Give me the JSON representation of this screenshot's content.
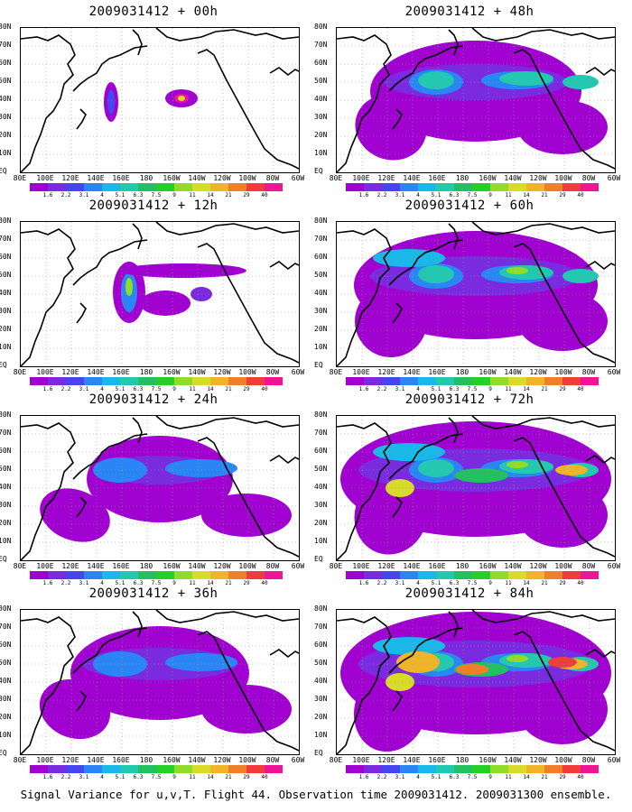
{
  "panels": [
    {
      "title": "2009031412 + 00h",
      "level": 0
    },
    {
      "title": "2009031412 + 48h",
      "level": 4
    },
    {
      "title": "2009031412 + 12h",
      "level": 1
    },
    {
      "title": "2009031412 + 60h",
      "level": 5
    },
    {
      "title": "2009031412 + 24h",
      "level": 2
    },
    {
      "title": "2009031412 + 72h",
      "level": 6
    },
    {
      "title": "2009031412 + 36h",
      "level": 3
    },
    {
      "title": "2009031412 + 84h",
      "level": 7
    }
  ],
  "lat_labels": [
    "80N",
    "70N",
    "60N",
    "50N",
    "40N",
    "30N",
    "20N",
    "10N",
    "EQ"
  ],
  "lon_labels": [
    "80E",
    "100E",
    "120E",
    "140E",
    "160E",
    "180",
    "160W",
    "140W",
    "120W",
    "100W",
    "80W",
    "60W"
  ],
  "colorbar": {
    "labels": [
      "1.6",
      "2.2",
      "3.1",
      "4",
      "5.1",
      "6.3",
      "7.5",
      "9",
      "11",
      "14",
      "21",
      "29",
      "40"
    ],
    "colors": [
      "#a000d0",
      "#7a2be0",
      "#4646f0",
      "#2b86f5",
      "#18b8e8",
      "#22c8b0",
      "#22c060",
      "#22d028",
      "#90dc28",
      "#d8dc28",
      "#f0b428",
      "#f08028",
      "#f03c3c",
      "#f01496"
    ]
  },
  "footer": "Signal Variance for u,v,T. Flight 44. Observation time 2009031412. 2009031300 ensemble."
}
